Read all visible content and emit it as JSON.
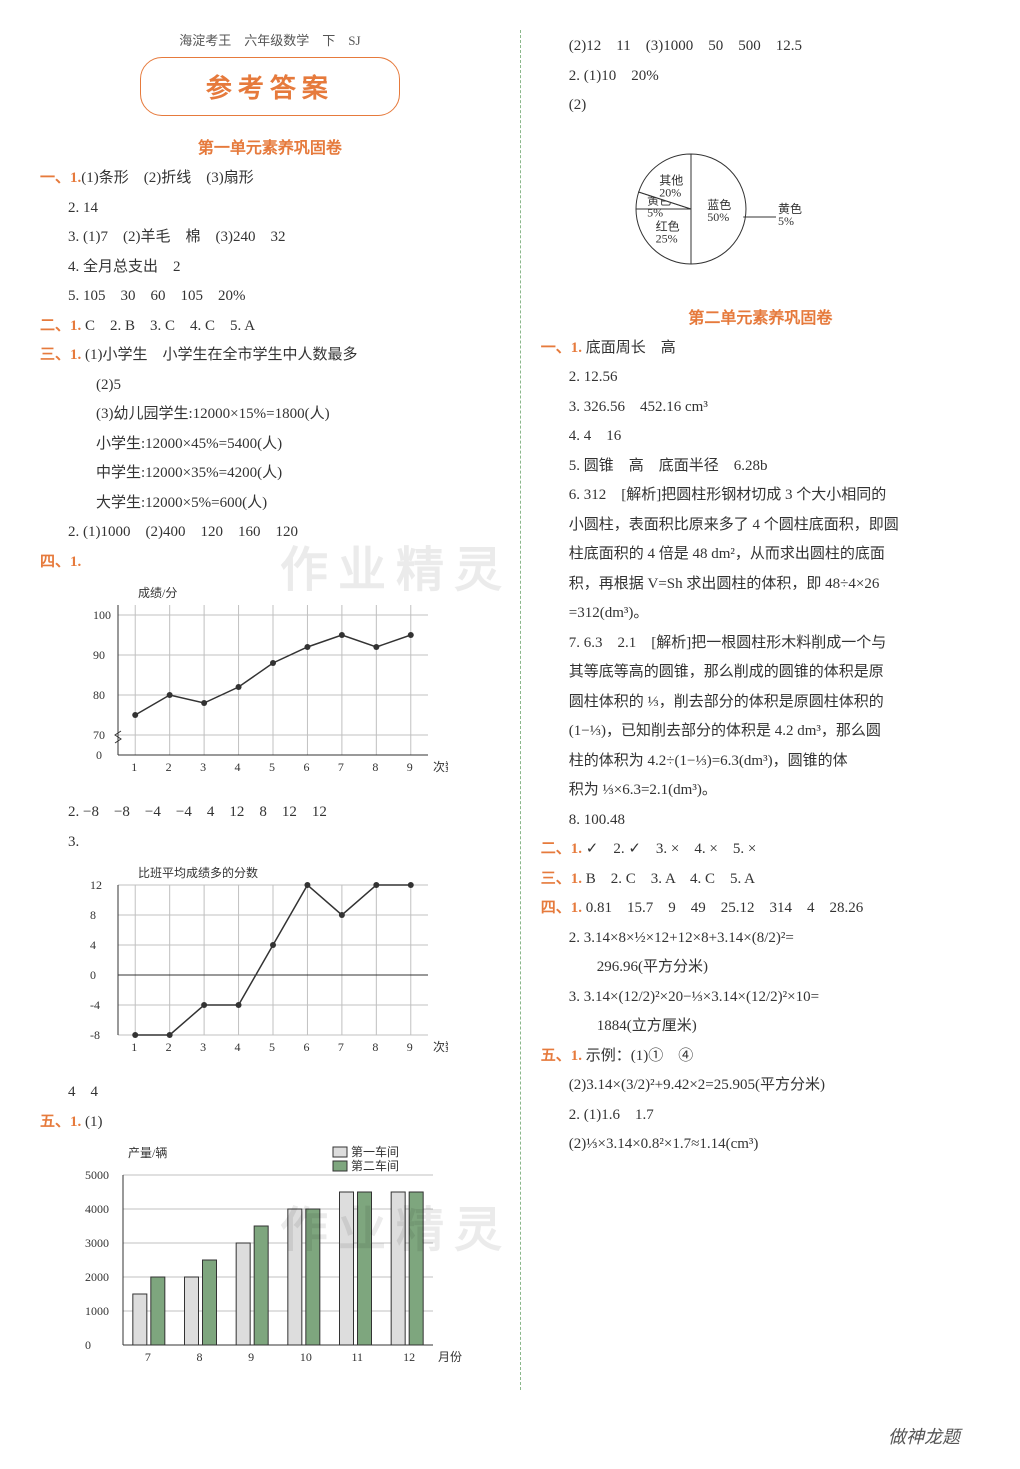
{
  "header_top": "海淀考王　六年级数学　下　SJ",
  "main_title": "参考答案",
  "unit1_title": "第一单元素养巩固卷",
  "unit2_title": "第二单元素养巩固卷",
  "footer": "做神龙题",
  "watermark": "作业精灵",
  "left": {
    "s1": "一、1.",
    "l1_1": "(1)条形　(2)折线　(3)扇形",
    "l1_2": "2. 14",
    "l1_3": "3. (1)7　(2)羊毛　棉　(3)240　32",
    "l1_4": "4. 全月总支出　2",
    "l1_5": "5. 105　30　60　105　20%",
    "s2": "二、1.",
    "l2_1": " C　2. B　3. C　4. C　5. A",
    "s3": "三、1.",
    "l3_1": " (1)小学生　小学生在全市学生中人数最多",
    "l3_2": "(2)5",
    "l3_3": "(3)幼儿园学生:12000×15%=1800(人)",
    "l3_4": "小学生:12000×45%=5400(人)",
    "l3_5": "中学生:12000×35%=4200(人)",
    "l3_6": "大学生:12000×5%=600(人)",
    "l3_7": "2. (1)1000　(2)400　120　160　120",
    "s4": "四、1.",
    "chart1": {
      "type": "line",
      "title": "成绩/分",
      "x_label": "次数",
      "x_ticks": [
        1,
        2,
        3,
        4,
        5,
        6,
        7,
        8,
        9
      ],
      "y_ticks": [
        0,
        70,
        80,
        90,
        100
      ],
      "values": [
        75,
        80,
        78,
        82,
        88,
        92,
        95,
        92,
        95
      ],
      "grid_color": "#c0c0c0",
      "line_color": "#333333",
      "axis_break": true
    },
    "l4_2": "2. −8　−8　−4　−4　4　12　8　12　12",
    "l4_3": "3.",
    "chart2": {
      "type": "line",
      "title": "比班平均成绩多的分数",
      "x_label": "次数",
      "x_ticks": [
        1,
        2,
        3,
        4,
        5,
        6,
        7,
        8,
        9
      ],
      "y_ticks": [
        -8,
        -4,
        0,
        4,
        8,
        12
      ],
      "values": [
        -8,
        -8,
        -4,
        -4,
        4,
        12,
        8,
        12,
        12
      ],
      "grid_color": "#c0c0c0",
      "line_color": "#333333"
    },
    "l4_4": "4　4",
    "s5": "五、1.",
    "l5_1": " (1)",
    "chart3": {
      "type": "bar",
      "title": "产量/辆",
      "x_label": "月份",
      "x_ticks": [
        7,
        8,
        9,
        10,
        11,
        12
      ],
      "y_ticks": [
        0,
        1000,
        2000,
        3000,
        4000,
        5000
      ],
      "legend": [
        "第一车间",
        "第二车间"
      ],
      "series1": [
        1500,
        2000,
        3000,
        4000,
        4500,
        4500
      ],
      "series2": [
        2000,
        2500,
        3500,
        4000,
        4500,
        4500
      ],
      "colors": [
        "#dddddd",
        "#7ea67e"
      ],
      "grid_color": "#c0c0c0"
    }
  },
  "right": {
    "r0_1": "(2)12　11　(3)1000　50　500　12.5",
    "r0_2": "2. (1)10　20%",
    "r0_3": "(2)",
    "pie": {
      "type": "pie",
      "slices": [
        {
          "label": "蓝色",
          "value": 50,
          "color": "#ffffff"
        },
        {
          "label": "红色",
          "value": 25,
          "color": "#ffffff"
        },
        {
          "label": "黄色",
          "value": 5,
          "color": "#ffffff"
        },
        {
          "label": "其他",
          "value": 20,
          "color": "#ffffff"
        }
      ],
      "line_color": "#333333"
    },
    "s1": "一、1.",
    "r1_1": " 底面周长　高",
    "r1_2": "2. 12.56",
    "r1_3": "3. 326.56　452.16 cm³",
    "r1_4": "4. 4　16",
    "r1_5": "5. 圆锥　高　底面半径　6.28b",
    "r1_6a": "6. 312　[解析]把圆柱形钢材切成 3 个大小相同的",
    "r1_6b": "小圆柱，表面积比原来多了 4 个圆柱底面积，即圆",
    "r1_6c": "柱底面积的 4 倍是 48 dm²，从而求出圆柱的底面",
    "r1_6d": "积，再根据 V=Sh 求出圆柱的体积，即 48÷4×26",
    "r1_6e": "=312(dm³)。",
    "r1_7a": "7. 6.3　2.1　[解析]把一根圆柱形木料削成一个与",
    "r1_7b": "其等底等高的圆锥，那么削成的圆锥的体积是原",
    "r1_7c": "圆柱体积的 ⅓，削去部分的体积是原圆柱体积的",
    "r1_7d": "(1−⅓)，已知削去部分的体积是 4.2 dm³，那么圆",
    "r1_7e": "柱的体积为 4.2÷(1−⅓)=6.3(dm³)，圆锥的体",
    "r1_7f": "积为 ⅓×6.3=2.1(dm³)。",
    "r1_8": "8. 100.48",
    "s2": "二、1.",
    "r2_1": " ✓　2. ✓　3. ×　4. ×　5. ×",
    "s3": "三、1.",
    "r3_1": " B　2. C　3. A　4. C　5. A",
    "s4": "四、1.",
    "r4_1": " 0.81　15.7　9　49　25.12　314　4　28.26",
    "r4_2": "2. 3.14×8×½×12+12×8+3.14×(8/2)²=",
    "r4_2b": "296.96(平方分米)",
    "r4_3": "3. 3.14×(12/2)²×20−⅓×3.14×(12/2)²×10=",
    "r4_3b": "1884(立方厘米)",
    "s5": "五、1.",
    "r5_1": " 示例：(1)①　④",
    "r5_2": "(2)3.14×(3/2)²+9.42×2=25.905(平方分米)",
    "r5_3": "2. (1)1.6　1.7",
    "r5_4": "(2)⅓×3.14×0.8²×1.7≈1.14(cm³)"
  }
}
